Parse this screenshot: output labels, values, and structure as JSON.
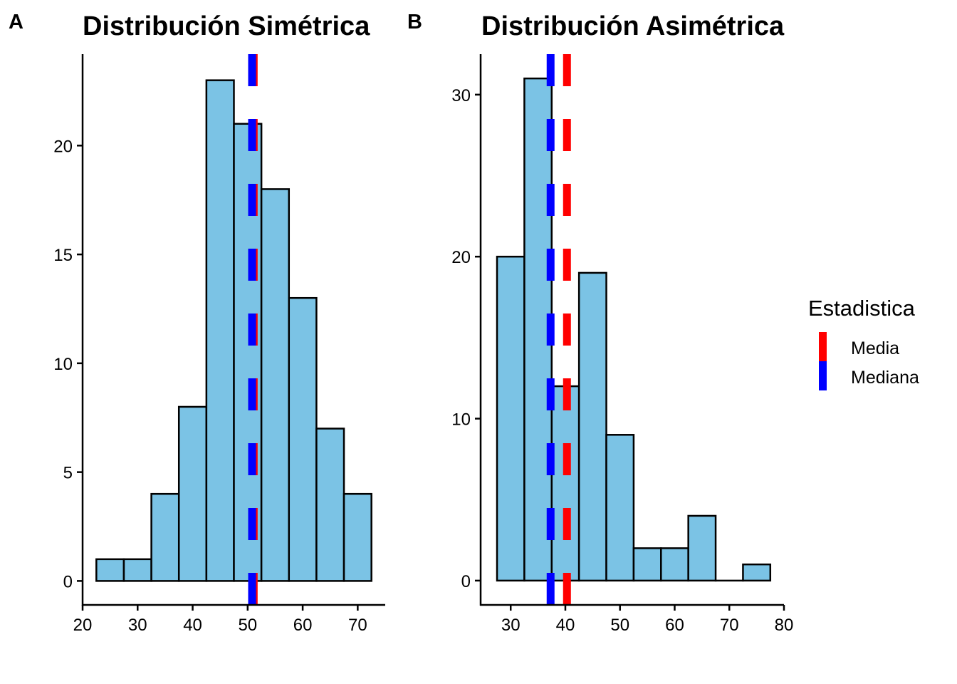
{
  "chart_data": [
    {
      "type": "bar",
      "subtype": "histogram",
      "panel_tag": "A",
      "title": "Distribución Simétrica",
      "xlabel": "",
      "ylabel": "",
      "bin_width": 5,
      "bin_centers": [
        25,
        30,
        35,
        40,
        45,
        50,
        55,
        60,
        65,
        70
      ],
      "values": [
        1,
        1,
        4,
        8,
        23,
        21,
        18,
        13,
        7,
        4
      ],
      "xlim": [
        20,
        75
      ],
      "ylim": [
        -1.1,
        24.2
      ],
      "xticks": [
        20,
        30,
        40,
        50,
        60,
        70
      ],
      "yticks": [
        0,
        5,
        10,
        15,
        20
      ],
      "reference_lines": [
        {
          "name": "Media",
          "x": 51.1
        },
        {
          "name": "Mediana",
          "x": 50.8
        }
      ],
      "grid": false
    },
    {
      "type": "bar",
      "subtype": "histogram",
      "panel_tag": "B",
      "title": "Distribución Asimétrica",
      "xlabel": "",
      "ylabel": "",
      "bin_width": 5,
      "bin_centers": [
        30,
        35,
        40,
        45,
        50,
        55,
        60,
        65,
        70,
        75
      ],
      "values": [
        20,
        31,
        12,
        19,
        9,
        2,
        2,
        4,
        0,
        1
      ],
      "xlim": [
        24.5,
        80
      ],
      "ylim": [
        -1.5,
        32.5
      ],
      "xticks": [
        30,
        40,
        50,
        60,
        70,
        80
      ],
      "yticks": [
        0,
        10,
        20,
        30
      ],
      "reference_lines": [
        {
          "name": "Media",
          "x": 40.3
        },
        {
          "name": "Mediana",
          "x": 37.3
        }
      ],
      "grid": false
    }
  ],
  "legend": {
    "title": "Estadistica",
    "placement": "right",
    "items": [
      {
        "label": "Media",
        "color": "#FF0000"
      },
      {
        "label": "Mediana",
        "color": "#0000FF"
      }
    ]
  },
  "colors": {
    "bar_fill": "#7BC3E5",
    "bar_stroke": "#000000",
    "mean_line": "#FF0000",
    "median_line": "#0000FF"
  }
}
